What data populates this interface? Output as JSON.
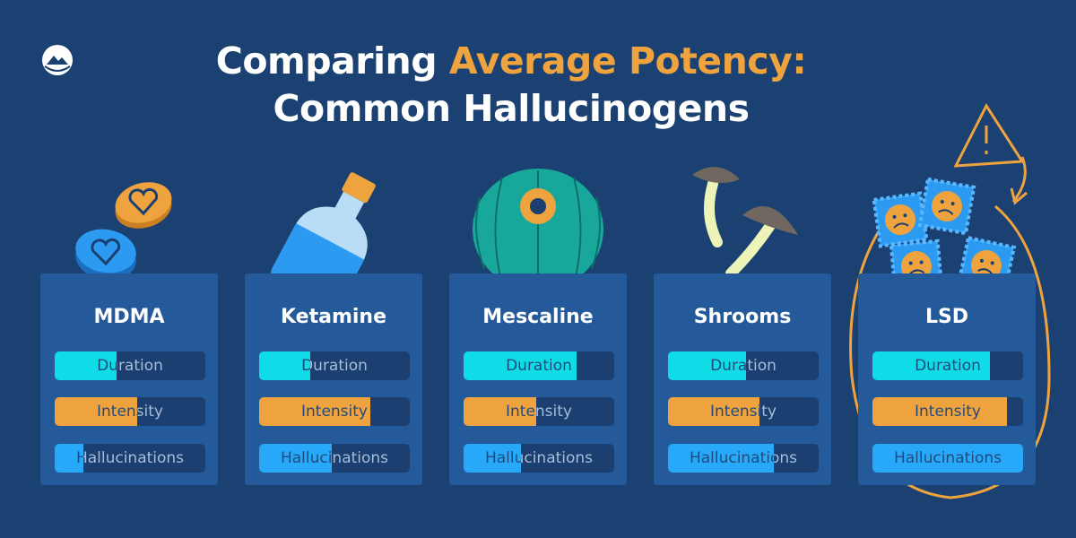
{
  "title": {
    "part1": "Comparing ",
    "accent": "Average Potency:",
    "line2": "Common Hallucinogens"
  },
  "colors": {
    "background": "#1a4172",
    "card": "#245a9a",
    "track": "#1a3f70",
    "duration": "#10dce8",
    "intensity": "#eea33f",
    "hallucinations": "#27a8f8",
    "accent": "#eea33f"
  },
  "icons": [
    "logo-icon",
    "heart-pill-icon",
    "vial-icon",
    "peyote-cactus-icon",
    "mushroom-icon",
    "sad-face-blotter-icon",
    "warning-icon"
  ],
  "chart_data": {
    "type": "bar",
    "title": "Comparing Average Potency: Common Hallucinogens",
    "metrics": [
      "Duration",
      "Intensity",
      "Hallucinations"
    ],
    "value_scale": "fraction of full bar (0-1)",
    "categories": [
      "MDMA",
      "Ketamine",
      "Mescaline",
      "Shrooms",
      "LSD"
    ],
    "series": [
      {
        "name": "Duration",
        "values": [
          0.41,
          0.34,
          0.75,
          0.52,
          0.78
        ]
      },
      {
        "name": "Intensity",
        "values": [
          0.55,
          0.74,
          0.48,
          0.61,
          0.89
        ]
      },
      {
        "name": "Hallucinations",
        "values": [
          0.19,
          0.48,
          0.38,
          0.7,
          1.0
        ]
      }
    ]
  }
}
